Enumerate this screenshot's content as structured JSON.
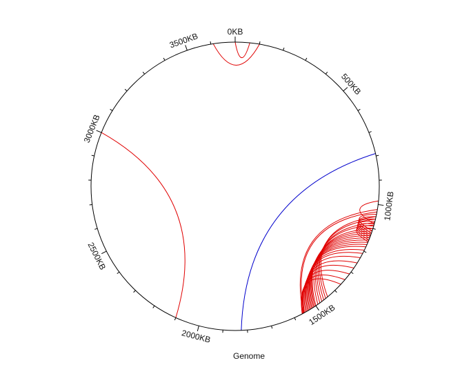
{
  "diagram": {
    "type": "circos-genome-links",
    "genome_label": "Genome",
    "genome_length_kb": 3700,
    "tick_labels": [
      {
        "kb": 0,
        "text": "0KB"
      },
      {
        "kb": 500,
        "text": "500KB"
      },
      {
        "kb": 1000,
        "text": "1000KB"
      },
      {
        "kb": 1500,
        "text": "1500KB"
      },
      {
        "kb": 2000,
        "text": "2000KB"
      },
      {
        "kb": 2500,
        "text": "2500KB"
      },
      {
        "kb": 3000,
        "text": "3000KB"
      },
      {
        "kb": 3500,
        "text": "3500KB"
      }
    ],
    "minor_tick_step_kb": 100,
    "colors": {
      "circle": "#000000",
      "red_link": "#e00000",
      "blue_link": "#0000cc"
    },
    "links": [
      {
        "from_kb": 0,
        "to_kb": 60,
        "color": "red"
      },
      {
        "from_kb": 3610,
        "to_kb": 100,
        "color": "red"
      },
      {
        "from_kb": 2100,
        "to_kb": 3000,
        "color": "red"
      },
      {
        "from_kb": 790,
        "to_kb": 1825,
        "color": "blue"
      },
      {
        "from_kb": 1050,
        "to_kb": 1440,
        "color": "red"
      },
      {
        "from_kb": 1060,
        "to_kb": 1450,
        "color": "red"
      },
      {
        "from_kb": 1075,
        "to_kb": 1460,
        "color": "red"
      },
      {
        "from_kb": 1085,
        "to_kb": 1470,
        "color": "red"
      },
      {
        "from_kb": 1100,
        "to_kb": 1480,
        "color": "red"
      },
      {
        "from_kb": 1110,
        "to_kb": 1490,
        "color": "red"
      },
      {
        "from_kb": 1120,
        "to_kb": 1500,
        "color": "red"
      },
      {
        "from_kb": 1130,
        "to_kb": 1505,
        "color": "red"
      },
      {
        "from_kb": 1140,
        "to_kb": 1510,
        "color": "red"
      },
      {
        "from_kb": 1150,
        "to_kb": 1515,
        "color": "red"
      },
      {
        "from_kb": 1160,
        "to_kb": 1520,
        "color": "red"
      },
      {
        "from_kb": 1170,
        "to_kb": 1525,
        "color": "red"
      },
      {
        "from_kb": 1180,
        "to_kb": 1530,
        "color": "red"
      },
      {
        "from_kb": 1195,
        "to_kb": 1535,
        "color": "red"
      },
      {
        "from_kb": 1210,
        "to_kb": 1540,
        "color": "red"
      },
      {
        "from_kb": 1230,
        "to_kb": 1545,
        "color": "red"
      },
      {
        "from_kb": 1255,
        "to_kb": 1550,
        "color": "red"
      },
      {
        "from_kb": 1280,
        "to_kb": 1555,
        "color": "red"
      },
      {
        "from_kb": 1310,
        "to_kb": 1558,
        "color": "red"
      },
      {
        "from_kb": 1340,
        "to_kb": 1562,
        "color": "red"
      },
      {
        "from_kb": 1365,
        "to_kb": 1565,
        "color": "red"
      },
      {
        "from_kb": 1040,
        "to_kb": 1110,
        "color": "red"
      },
      {
        "from_kb": 1050,
        "to_kb": 1120,
        "color": "red"
      },
      {
        "from_kb": 1060,
        "to_kb": 1128,
        "color": "red"
      },
      {
        "from_kb": 1070,
        "to_kb": 1135,
        "color": "red"
      },
      {
        "from_kb": 1080,
        "to_kb": 1142,
        "color": "red"
      },
      {
        "from_kb": 1090,
        "to_kb": 1150,
        "color": "red"
      },
      {
        "from_kb": 1100,
        "to_kb": 1158,
        "color": "red"
      },
      {
        "from_kb": 1020,
        "to_kb": 1560,
        "color": "red"
      },
      {
        "from_kb": 1030,
        "to_kb": 1555,
        "color": "red"
      },
      {
        "from_kb": 985,
        "to_kb": 1080,
        "color": "red"
      }
    ]
  }
}
